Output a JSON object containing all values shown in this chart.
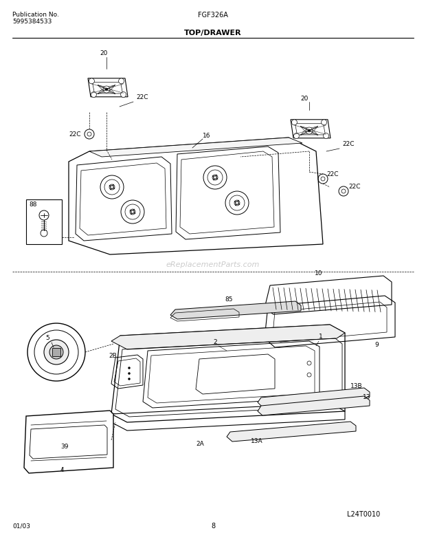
{
  "title": "TOP/DRAWER",
  "model": "FGF326A",
  "pub_no_label": "Publication No.",
  "pub_no": "5995384533",
  "diagram_code": "L24T0010",
  "date": "01/03",
  "page": "8",
  "bg_color": "#ffffff",
  "lc": "#000000",
  "watermark": "eReplacementParts.com"
}
